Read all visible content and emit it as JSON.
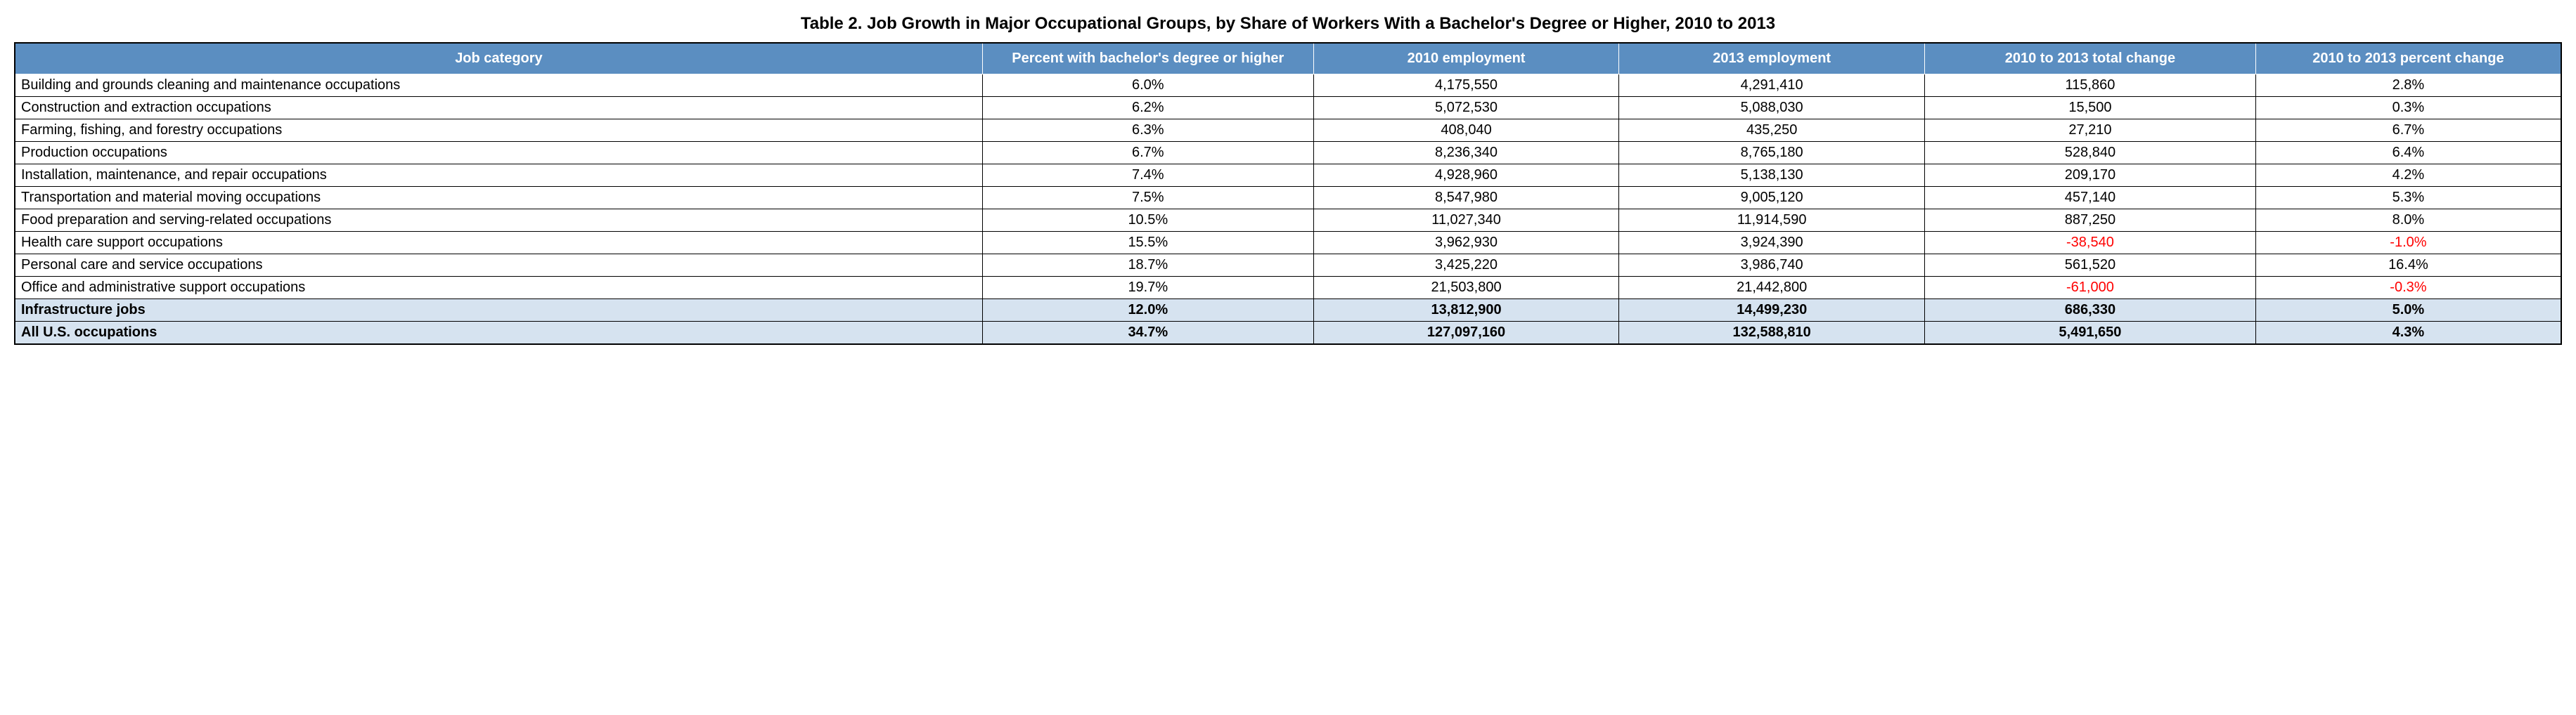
{
  "title": "Table 2. Job Growth in Major Occupational Groups, by Share of Workers With a Bachelor's Degree or Higher, 2010 to 2013",
  "table": {
    "columns": [
      "Job category",
      "Percent with bachelor's degree or higher",
      "2010 employment",
      "2013 employment",
      "2010 to 2013 total change",
      "2010 to 2013 percent change"
    ],
    "rows": [
      {
        "category": "Building and grounds cleaning and maintenance occupations",
        "pct_bachelor": "6.0%",
        "emp_2010": "4,175,550",
        "emp_2013": "4,291,410",
        "total_change": "115,860",
        "pct_change": "2.8%",
        "total_change_negative": false,
        "pct_change_negative": false
      },
      {
        "category": "Construction and extraction occupations",
        "pct_bachelor": "6.2%",
        "emp_2010": "5,072,530",
        "emp_2013": "5,088,030",
        "total_change": "15,500",
        "pct_change": "0.3%",
        "total_change_negative": false,
        "pct_change_negative": false
      },
      {
        "category": "Farming, fishing, and forestry occupations",
        "pct_bachelor": "6.3%",
        "emp_2010": "408,040",
        "emp_2013": "435,250",
        "total_change": "27,210",
        "pct_change": "6.7%",
        "total_change_negative": false,
        "pct_change_negative": false
      },
      {
        "category": "Production occupations",
        "pct_bachelor": "6.7%",
        "emp_2010": "8,236,340",
        "emp_2013": "8,765,180",
        "total_change": "528,840",
        "pct_change": "6.4%",
        "total_change_negative": false,
        "pct_change_negative": false
      },
      {
        "category": "Installation, maintenance, and repair occupations",
        "pct_bachelor": "7.4%",
        "emp_2010": "4,928,960",
        "emp_2013": "5,138,130",
        "total_change": "209,170",
        "pct_change": "4.2%",
        "total_change_negative": false,
        "pct_change_negative": false
      },
      {
        "category": "Transportation and material moving occupations",
        "pct_bachelor": "7.5%",
        "emp_2010": "8,547,980",
        "emp_2013": "9,005,120",
        "total_change": "457,140",
        "pct_change": "5.3%",
        "total_change_negative": false,
        "pct_change_negative": false
      },
      {
        "category": "Food preparation and serving-related occupations",
        "pct_bachelor": "10.5%",
        "emp_2010": "11,027,340",
        "emp_2013": "11,914,590",
        "total_change": "887,250",
        "pct_change": "8.0%",
        "total_change_negative": false,
        "pct_change_negative": false
      },
      {
        "category": "Health care support occupations",
        "pct_bachelor": "15.5%",
        "emp_2010": "3,962,930",
        "emp_2013": "3,924,390",
        "total_change": "-38,540",
        "pct_change": "-1.0%",
        "total_change_negative": true,
        "pct_change_negative": true
      },
      {
        "category": "Personal care and service occupations",
        "pct_bachelor": "18.7%",
        "emp_2010": "3,425,220",
        "emp_2013": "3,986,740",
        "total_change": "561,520",
        "pct_change": "16.4%",
        "total_change_negative": false,
        "pct_change_negative": false
      },
      {
        "category": "Office and administrative support occupations",
        "pct_bachelor": "19.7%",
        "emp_2010": "21,503,800",
        "emp_2013": "21,442,800",
        "total_change": "-61,000",
        "pct_change": "-0.3%",
        "total_change_negative": true,
        "pct_change_negative": true
      }
    ],
    "summary_rows": [
      {
        "category": "Infrastructure jobs",
        "pct_bachelor": "12.0%",
        "emp_2010": "13,812,900",
        "emp_2013": "14,499,230",
        "total_change": "686,330",
        "pct_change": "5.0%"
      },
      {
        "category": "All U.S. occupations",
        "pct_bachelor": "34.7%",
        "emp_2010": "127,097,160",
        "emp_2013": "132,588,810",
        "total_change": "5,491,650",
        "pct_change": "4.3%"
      }
    ],
    "styling": {
      "header_bg_color": "#5b8ec1",
      "header_text_color": "#ffffff",
      "body_bg_color": "#ffffff",
      "summary_bg_color": "#d6e3f0",
      "border_color": "#000000",
      "negative_color": "#ff0000",
      "text_color": "#000000",
      "title_fontsize": 24,
      "header_fontsize": 20,
      "body_fontsize": 20,
      "font_family": "Arial, Helvetica, sans-serif"
    }
  }
}
